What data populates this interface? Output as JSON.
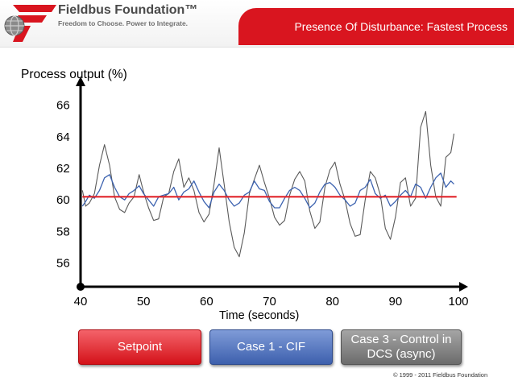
{
  "header": {
    "brand_name": "Fieldbus Foundation™",
    "tagline": "Freedom to Choose. Power to Integrate.",
    "slide_title": "Presence Of Disturbance: Fastest Process"
  },
  "legend": {
    "setpoint_label": "Setpoint",
    "case1_label": "Case 1 - CIF",
    "case3_label": "Case 3 - Control in DCS (async)"
  },
  "footer": {
    "copyright": "© 1999 - 2011 Fieldbus Foundation"
  },
  "colors": {
    "brand_red": "#d9151f",
    "setpoint": "#e0242a",
    "case1": "#3d63b0",
    "case3": "#5a5a5a"
  },
  "chart_data": {
    "type": "line",
    "title": "",
    "xlabel": "Time (seconds)",
    "ylabel": "Process output (%)",
    "xlim": [
      40,
      100
    ],
    "ylim": [
      54.5,
      67
    ],
    "x_ticks": [
      40,
      50,
      60,
      70,
      80,
      90,
      100
    ],
    "y_ticks": [
      56,
      58,
      60,
      62,
      64,
      66
    ],
    "grid": false,
    "legend_position": "bottom",
    "series": [
      {
        "name": "Setpoint",
        "color": "#e0242a",
        "x": [
          40.3,
          99.7
        ],
        "y": [
          60.2,
          60.2
        ]
      },
      {
        "name": "Case 1 - CIF",
        "color": "#3d63b0",
        "x": [
          40.3,
          40.8,
          41.4,
          42.2,
          43.0,
          43.8,
          44.6,
          45.4,
          46.2,
          47.0,
          47.7,
          48.5,
          49.3,
          50.0,
          50.8,
          51.6,
          52.4,
          53.2,
          54.0,
          54.8,
          55.6,
          56.4,
          57.2,
          58.0,
          58.8,
          59.6,
          60.4,
          61.2,
          62.0,
          62.8,
          63.6,
          64.4,
          65.2,
          66.0,
          66.8,
          67.6,
          68.4,
          69.2,
          70.0,
          70.8,
          71.6,
          72.4,
          73.2,
          74.0,
          74.8,
          75.6,
          76.4,
          77.2,
          78.0,
          78.8,
          79.6,
          80.4,
          81.2,
          82.0,
          82.8,
          83.6,
          84.4,
          85.2,
          86.0,
          86.8,
          87.6,
          88.4,
          89.2,
          90.0,
          90.8,
          91.6,
          92.4,
          93.2,
          94.0,
          94.8,
          95.6,
          96.4,
          97.2,
          98.0,
          98.8,
          99.3
        ],
        "y": [
          59.6,
          59.9,
          60.3,
          60.1,
          60.6,
          61.4,
          61.6,
          60.8,
          60.2,
          60.0,
          60.4,
          60.6,
          60.9,
          60.4,
          60.0,
          59.6,
          60.2,
          60.3,
          60.4,
          60.8,
          60.0,
          60.5,
          60.7,
          61.2,
          60.5,
          59.9,
          59.5,
          60.5,
          61.0,
          60.6,
          60.0,
          59.6,
          59.8,
          60.3,
          60.5,
          61.2,
          60.7,
          60.6,
          59.9,
          59.5,
          59.5,
          60.1,
          60.6,
          60.8,
          60.6,
          60.1,
          59.5,
          59.8,
          60.5,
          61.0,
          61.1,
          60.8,
          60.3,
          60.0,
          59.6,
          59.8,
          60.6,
          60.8,
          61.3,
          60.4,
          60.1,
          60.3,
          59.6,
          59.9,
          60.3,
          60.6,
          60.2,
          61.0,
          60.8,
          60.1,
          60.8,
          61.4,
          61.7,
          60.8,
          61.2,
          61.0
        ]
      },
      {
        "name": "Case 3 - Control in DCS (async)",
        "color": "#5a5a5a",
        "x": [
          40.3,
          40.8,
          41.4,
          42.2,
          43.0,
          43.8,
          44.6,
          45.4,
          46.2,
          47.0,
          47.7,
          48.5,
          49.3,
          50.0,
          50.8,
          51.6,
          52.4,
          53.2,
          54.0,
          54.8,
          55.6,
          56.4,
          57.2,
          58.0,
          58.8,
          59.6,
          60.4,
          61.2,
          62.0,
          62.8,
          63.6,
          64.4,
          65.2,
          66.0,
          66.8,
          67.6,
          68.4,
          69.2,
          70.0,
          70.8,
          71.6,
          72.4,
          73.2,
          74.0,
          74.8,
          75.6,
          76.4,
          77.2,
          78.0,
          78.8,
          79.6,
          80.4,
          81.2,
          82.0,
          82.8,
          83.6,
          84.4,
          85.2,
          86.0,
          86.8,
          87.6,
          88.4,
          89.2,
          90.0,
          90.8,
          91.6,
          92.4,
          93.2,
          94.0,
          94.8,
          95.6,
          96.4,
          97.2,
          98.0,
          98.8,
          99.3
        ],
        "y": [
          60.6,
          59.6,
          59.8,
          60.4,
          62.2,
          63.5,
          62.2,
          60.2,
          59.4,
          59.2,
          59.8,
          60.2,
          61.6,
          60.5,
          59.5,
          58.7,
          58.8,
          60.2,
          60.4,
          61.8,
          62.6,
          60.8,
          61.4,
          60.6,
          59.2,
          58.6,
          59.1,
          61.0,
          63.3,
          61.0,
          58.6,
          57.0,
          56.4,
          57.9,
          60.4,
          61.3,
          62.2,
          61.1,
          60.1,
          58.9,
          58.4,
          58.7,
          60.3,
          61.3,
          61.8,
          61.2,
          59.3,
          58.2,
          58.6,
          60.8,
          61.9,
          62.4,
          61.0,
          60.0,
          58.5,
          57.7,
          57.8,
          60.0,
          61.8,
          61.4,
          60.3,
          58.2,
          57.5,
          58.9,
          61.1,
          61.4,
          59.6,
          60.1,
          64.6,
          65.6,
          62.2,
          60.2,
          59.6,
          62.7,
          63.0,
          64.2
        ]
      }
    ]
  }
}
